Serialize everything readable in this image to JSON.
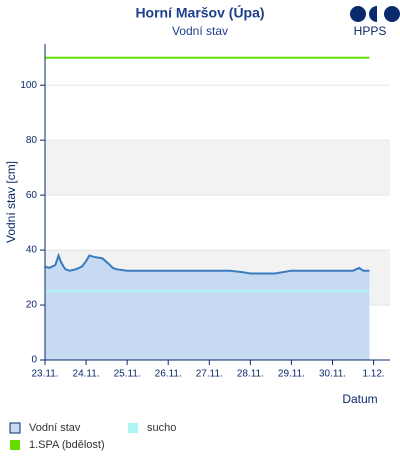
{
  "chart_data": {
    "type": "area",
    "title": "Horní Maršov (Úpa)",
    "subtitle": "Vodní stav",
    "logo": "HPPS",
    "y_label": "Vodní stav [cm]",
    "x_label": "Datum",
    "xlim": [
      0,
      8.4
    ],
    "xticks": [
      {
        "value": 0,
        "label": "23.11."
      },
      {
        "value": 1,
        "label": "24.11."
      },
      {
        "value": 2,
        "label": "25.11."
      },
      {
        "value": 3,
        "label": "26.11."
      },
      {
        "value": 4,
        "label": "27.11."
      },
      {
        "value": 5,
        "label": "28.11."
      },
      {
        "value": 6,
        "label": "29.11."
      },
      {
        "value": 7,
        "label": "30.11."
      },
      {
        "value": 8,
        "label": "1.12."
      }
    ],
    "ylim": [
      0,
      115
    ],
    "yticks": [
      0,
      20,
      40,
      60,
      80,
      100
    ],
    "grid": true,
    "x": [
      0,
      0.1,
      0.25,
      0.33,
      0.38,
      0.45,
      0.5,
      0.6,
      0.75,
      0.9,
      1.0,
      1.08,
      1.2,
      1.4,
      1.55,
      1.65,
      1.75,
      2,
      2.5,
      3,
      3.5,
      4,
      4.5,
      4.8,
      5,
      5.3,
      5.6,
      5.8,
      6,
      6.5,
      7,
      7.5,
      7.65,
      7.75,
      7.9
    ],
    "series": [
      {
        "name": "Vodní stav",
        "color": "#3a7bbf",
        "fill": "#c6dbf1",
        "values": [
          34,
          33.5,
          34.5,
          38,
          36,
          34,
          33,
          32.5,
          33,
          34,
          36,
          38,
          37.5,
          37,
          35,
          33.5,
          33,
          32.5,
          32.5,
          32.5,
          32.5,
          32.5,
          32.5,
          32,
          31.5,
          31.5,
          31.5,
          32,
          32.5,
          32.5,
          32.5,
          32.5,
          33.5,
          32.5,
          32.5
        ]
      }
    ],
    "thresholds": [
      {
        "name": "sucho",
        "color": "#aef5f5",
        "value": 25
      },
      {
        "name": "1.SPA (bdělost)",
        "color": "#66dd00",
        "value": 110
      }
    ]
  }
}
